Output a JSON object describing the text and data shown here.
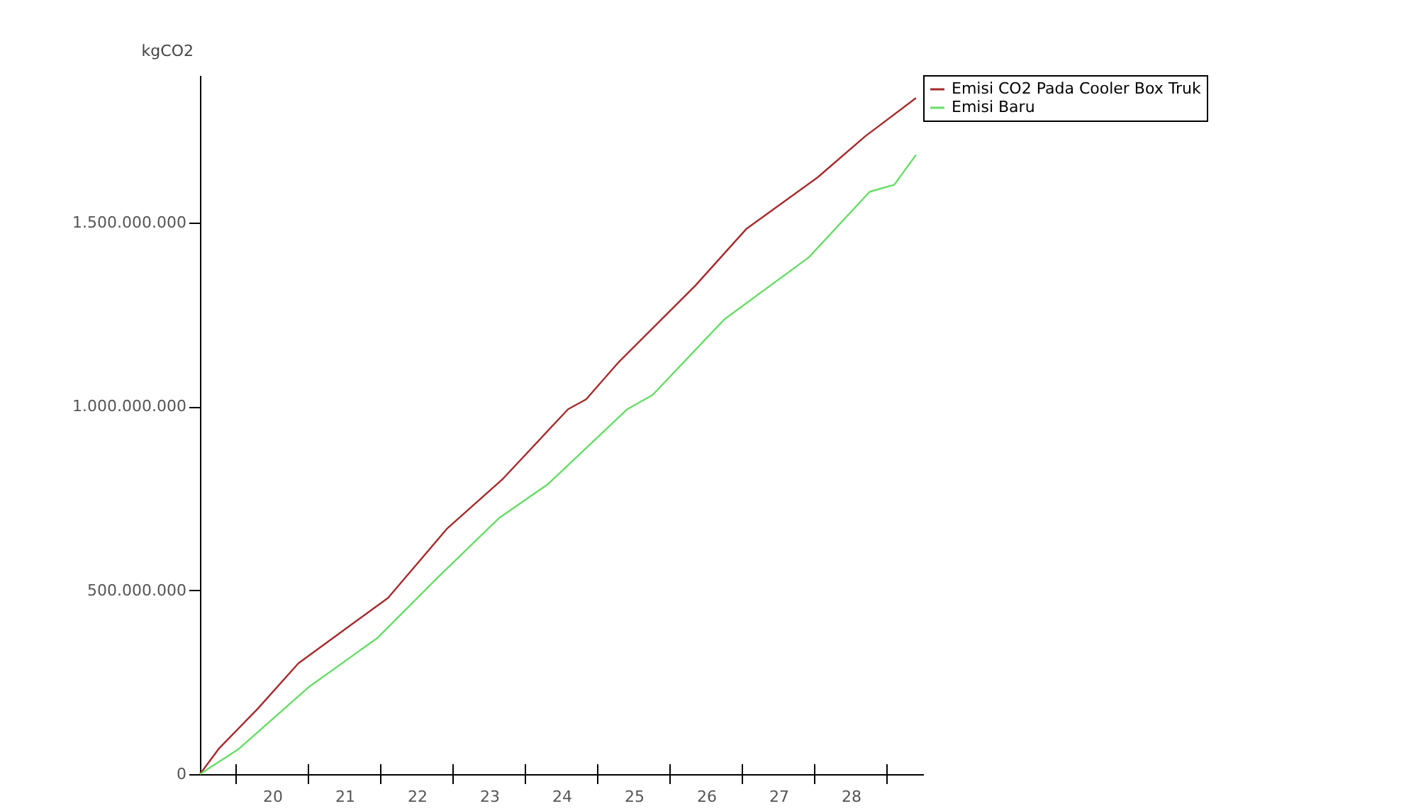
{
  "chart_data": {
    "type": "line",
    "ylabel": "kgCO2",
    "xlim": [
      19,
      29
    ],
    "ylim": [
      0,
      1900000000
    ],
    "xticks": [
      {
        "value": 19.5,
        "label": null
      },
      {
        "value": 20,
        "label": "20"
      },
      {
        "value": 20.5,
        "label": null
      },
      {
        "value": 21,
        "label": "21"
      },
      {
        "value": 21.5,
        "label": null
      },
      {
        "value": 22,
        "label": "22"
      },
      {
        "value": 22.5,
        "label": null
      },
      {
        "value": 23,
        "label": "23"
      },
      {
        "value": 23.5,
        "label": null
      },
      {
        "value": 24,
        "label": "24"
      },
      {
        "value": 24.5,
        "label": null
      },
      {
        "value": 25,
        "label": "25"
      },
      {
        "value": 25.5,
        "label": null
      },
      {
        "value": 26,
        "label": "26"
      },
      {
        "value": 26.5,
        "label": null
      },
      {
        "value": 27,
        "label": "27"
      },
      {
        "value": 27.5,
        "label": null
      },
      {
        "value": 28,
        "label": "28"
      },
      {
        "value": 28.5,
        "label": null
      }
    ],
    "yticks": [
      0,
      {
        "value": 500000000,
        "label": "500.000.000"
      },
      {
        "value": 1000000000,
        "label": "1.000.000.000"
      },
      {
        "value": 1500000000,
        "label": "1.500.000.000"
      }
    ],
    "grid": false,
    "legend": "right",
    "marker": "none",
    "line_style": "solid",
    "series": [
      {
        "name": "Emisi CO2 Pada Cooler Box Truk",
        "color": "#a52a2a",
        "x": [
          19,
          19.26,
          19.8,
          20.36,
          21.6,
          22.42,
          23.19,
          24.09,
          24.34,
          24.79,
          25.85,
          26.56,
          27.54,
          28.2,
          28.9
        ],
        "values": [
          0,
          69000000,
          178000000,
          301000000,
          479000000,
          668000000,
          803000000,
          992000000,
          1019000000,
          1120000000,
          1328000000,
          1483000000,
          1622000000,
          1734000000,
          1838000000
        ]
      },
      {
        "name": "Emisi Baru",
        "color": "#66dd66",
        "x": [
          19,
          19.54,
          20.5,
          21.46,
          22.28,
          23.13,
          23.81,
          24.91,
          25.26,
          26.25,
          27.42,
          28.26,
          28.6,
          28.9
        ],
        "values": [
          0,
          69000000,
          236000000,
          371000000,
          533000000,
          695000000,
          788000000,
          992000000,
          1031000000,
          1236000000,
          1405000000,
          1583000000,
          1602000000,
          1683000000
        ]
      }
    ]
  }
}
